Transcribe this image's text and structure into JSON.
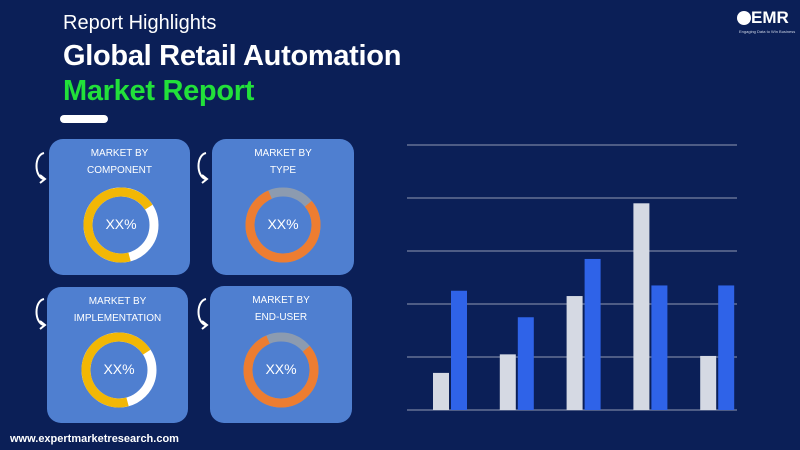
{
  "header": {
    "subtitle": "Report Highlights",
    "title_line1": "Global Retail Automation",
    "title_line2": "Market Report"
  },
  "logo": {
    "text": "EMR",
    "tagline": "Engaging Data to Win Business"
  },
  "cards": [
    {
      "label_line1": "MARKET BY",
      "label_line2": "COMPONENT",
      "value": "XX%",
      "ring_color": "#f2b705",
      "rest_color": "#ffffff"
    },
    {
      "label_line1": "MARKET BY",
      "label_line2": "TYPE",
      "value": "XX%",
      "ring_color": "#ed7d31",
      "rest_color": "#8c9bb0"
    },
    {
      "label_line1": "MARKET BY",
      "label_line2": "IMPLEMENTATION",
      "value": "XX%",
      "ring_color": "#f2b705",
      "rest_color": "#ffffff"
    },
    {
      "label_line1": "MARKET BY",
      "label_line2": "END-USER",
      "value": "XX%",
      "ring_color": "#ed7d31",
      "rest_color": "#8c9bb0"
    }
  ],
  "footer": {
    "url": "www.expertmarketresearch.com"
  },
  "chart_data": {
    "type": "bar",
    "categories": [
      "1",
      "2",
      "3",
      "4",
      "5"
    ],
    "series": [
      {
        "color": "#d5d9e3",
        "values": [
          0.7,
          1.05,
          2.15,
          3.9,
          1.02
        ]
      },
      {
        "color": "#2f63e8",
        "values": [
          2.25,
          1.75,
          2.85,
          2.35,
          2.35
        ]
      }
    ],
    "ylim": [
      0,
      5
    ],
    "grid": true,
    "legend": "none"
  }
}
